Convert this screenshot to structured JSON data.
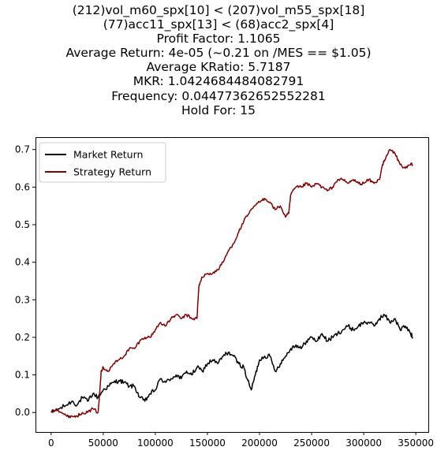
{
  "chart_data": {
    "type": "line",
    "title_lines": [
      "(212)vol_m60_spx[10] < (207)vol_m55_spx[18]",
      "(77)acc11_spx[13] < (68)acc2_spx[4]",
      "Profit Factor: 1.1065",
      "Average Return: 4e-05 (~0.21 on /MES == $1.05)",
      "Average KRatio: 5.7187",
      "MKR: 1.0424684484082791",
      "Frequency: 0.04477362652552281",
      "Hold For: 15"
    ],
    "xlim": [
      -15000,
      362000
    ],
    "ylim": [
      -0.052,
      0.733
    ],
    "xticks": [
      0,
      50000,
      100000,
      150000,
      200000,
      250000,
      300000,
      350000
    ],
    "xtick_labels": [
      "0",
      "50000",
      "100000",
      "150000",
      "200000",
      "250000",
      "300000",
      "350000"
    ],
    "yticks": [
      0.0,
      0.1,
      0.2,
      0.3,
      0.4,
      0.5,
      0.6,
      0.7
    ],
    "ytick_labels": [
      "0.0",
      "0.1",
      "0.2",
      "0.3",
      "0.4",
      "0.5",
      "0.6",
      "0.7"
    ],
    "legend_position": "upper-left",
    "grid": false,
    "series": [
      {
        "name": "Market Return",
        "color": "#000000",
        "x": [
          0,
          8000,
          15000,
          20000,
          25000,
          30000,
          35000,
          40000,
          45000,
          50000,
          55000,
          60000,
          65000,
          70000,
          75000,
          80000,
          85000,
          90000,
          95000,
          100000,
          105000,
          110000,
          115000,
          120000,
          125000,
          130000,
          135000,
          140000,
          145000,
          150000,
          155000,
          160000,
          165000,
          170000,
          175000,
          180000,
          185000,
          188000,
          192000,
          196000,
          200000,
          205000,
          210000,
          215000,
          220000,
          225000,
          230000,
          235000,
          240000,
          245000,
          250000,
          255000,
          260000,
          265000,
          270000,
          275000,
          280000,
          285000,
          290000,
          295000,
          300000,
          305000,
          310000,
          315000,
          320000,
          325000,
          330000,
          335000,
          340000,
          345000,
          347000
        ],
        "y": [
          0.0,
          0.01,
          0.02,
          0.03,
          0.02,
          0.04,
          0.03,
          0.05,
          0.04,
          0.06,
          0.07,
          0.08,
          0.085,
          0.08,
          0.07,
          0.07,
          0.04,
          0.03,
          0.05,
          0.06,
          0.09,
          0.08,
          0.09,
          0.1,
          0.09,
          0.11,
          0.1,
          0.12,
          0.11,
          0.13,
          0.14,
          0.13,
          0.15,
          0.16,
          0.15,
          0.13,
          0.12,
          0.09,
          0.06,
          0.1,
          0.14,
          0.15,
          0.15,
          0.11,
          0.13,
          0.15,
          0.17,
          0.18,
          0.17,
          0.19,
          0.2,
          0.19,
          0.21,
          0.19,
          0.2,
          0.21,
          0.22,
          0.23,
          0.22,
          0.23,
          0.24,
          0.24,
          0.23,
          0.25,
          0.26,
          0.24,
          0.25,
          0.22,
          0.23,
          0.21,
          0.2
        ]
      },
      {
        "name": "Strategy Return",
        "color": "#800000",
        "x": [
          0,
          5000,
          10000,
          15000,
          20000,
          25000,
          30000,
          35000,
          40000,
          45000,
          46000,
          47000,
          48000,
          50000,
          55000,
          60000,
          65000,
          70000,
          75000,
          80000,
          85000,
          90000,
          95000,
          100000,
          105000,
          110000,
          115000,
          120000,
          125000,
          130000,
          135000,
          140000,
          141000,
          142000,
          145000,
          150000,
          155000,
          160000,
          165000,
          170000,
          175000,
          180000,
          185000,
          190000,
          195000,
          200000,
          205000,
          210000,
          215000,
          220000,
          225000,
          228000,
          230000,
          235000,
          240000,
          245000,
          250000,
          255000,
          260000,
          265000,
          270000,
          275000,
          280000,
          285000,
          290000,
          295000,
          300000,
          305000,
          310000,
          315000,
          318000,
          320000,
          325000,
          330000,
          335000,
          340000,
          345000,
          347000
        ],
        "y": [
          0.0,
          0.01,
          0.0,
          -0.01,
          -0.01,
          -0.01,
          0.0,
          0.0,
          0.01,
          0.0,
          0.03,
          0.07,
          0.11,
          0.12,
          0.11,
          0.13,
          0.14,
          0.15,
          0.17,
          0.17,
          0.19,
          0.2,
          0.2,
          0.22,
          0.24,
          0.23,
          0.25,
          0.26,
          0.25,
          0.26,
          0.25,
          0.25,
          0.3,
          0.34,
          0.36,
          0.37,
          0.37,
          0.38,
          0.4,
          0.43,
          0.45,
          0.48,
          0.51,
          0.53,
          0.55,
          0.56,
          0.57,
          0.56,
          0.54,
          0.55,
          0.52,
          0.53,
          0.58,
          0.6,
          0.6,
          0.61,
          0.6,
          0.61,
          0.6,
          0.59,
          0.6,
          0.62,
          0.62,
          0.61,
          0.62,
          0.61,
          0.61,
          0.62,
          0.61,
          0.62,
          0.66,
          0.67,
          0.7,
          0.69,
          0.66,
          0.65,
          0.66,
          0.66
        ]
      }
    ]
  }
}
